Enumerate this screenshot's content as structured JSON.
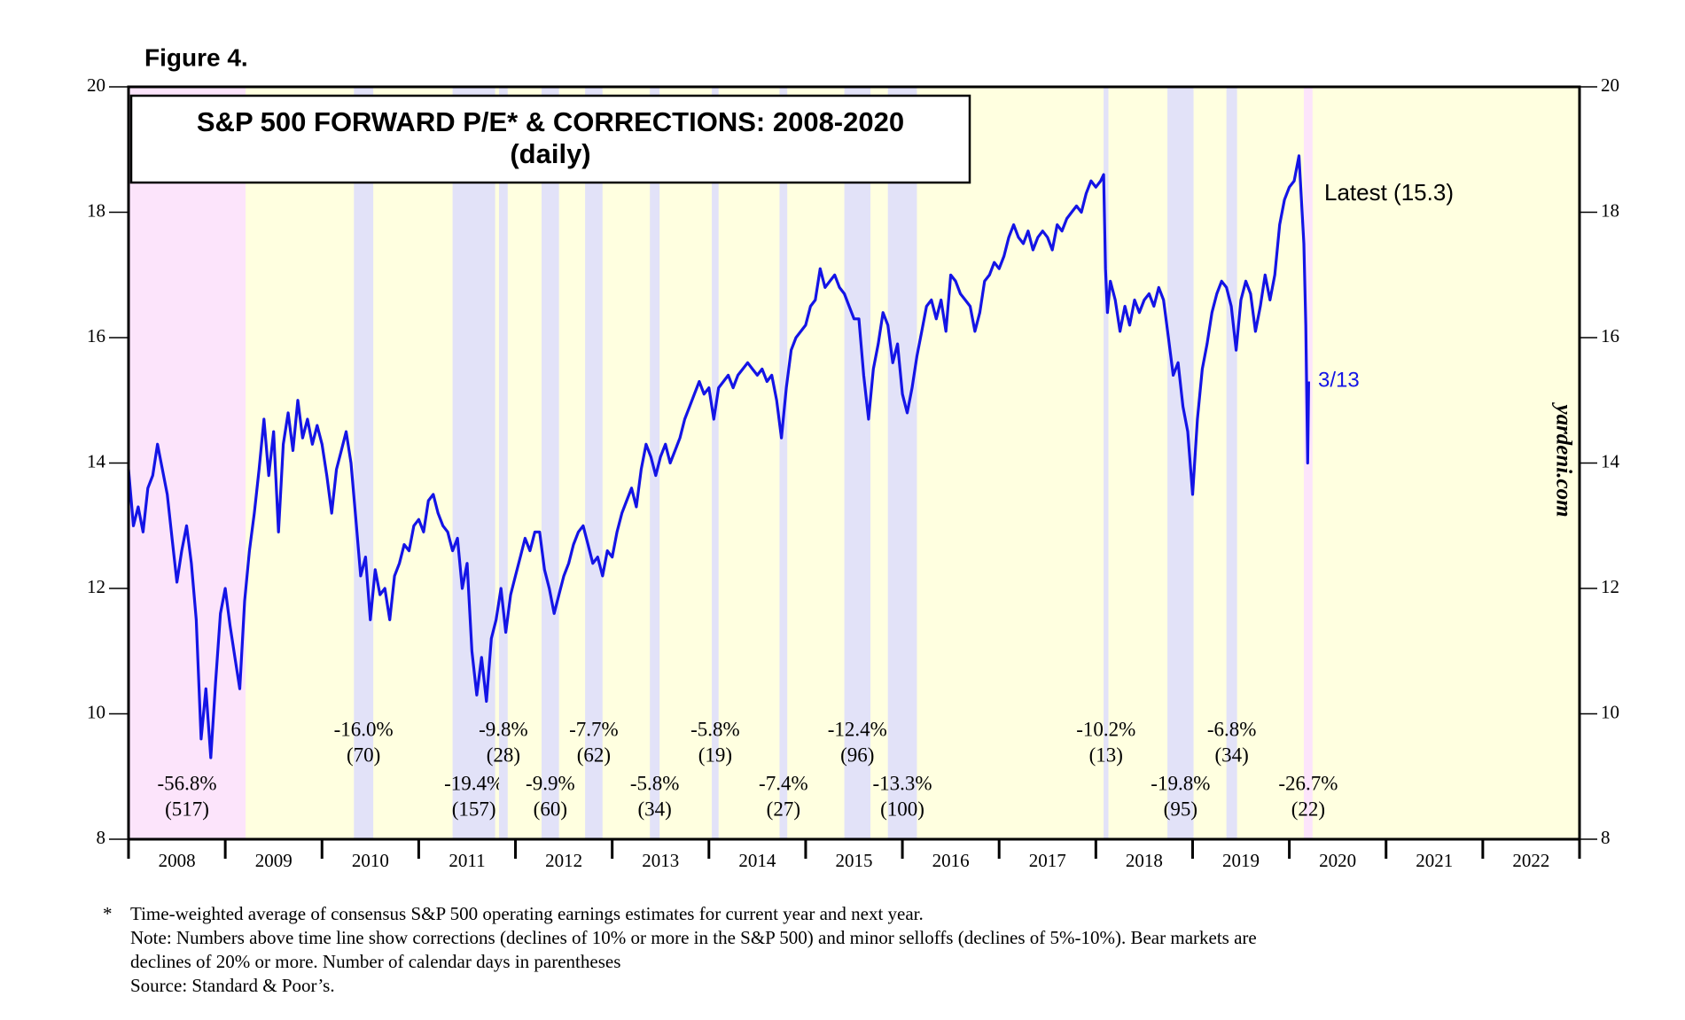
{
  "figure_label": "Figure 4.",
  "chart_data": {
    "type": "line",
    "title": "S&P 500 FORWARD P/E* & CORRECTIONS: 2008-2020",
    "subtitle": "(daily)",
    "xlim": [
      2008,
      2023
    ],
    "x_boundaries": [
      2008,
      2009,
      2010,
      2011,
      2012,
      2013,
      2014,
      2015,
      2016,
      2017,
      2018,
      2019,
      2020,
      2021,
      2022,
      2023
    ],
    "xticks": [
      {
        "value": 2008.5,
        "label": "2008"
      },
      {
        "value": 2009.5,
        "label": "2009"
      },
      {
        "value": 2010.5,
        "label": "2010"
      },
      {
        "value": 2011.5,
        "label": "2011"
      },
      {
        "value": 2012.5,
        "label": "2012"
      },
      {
        "value": 2013.5,
        "label": "2013"
      },
      {
        "value": 2014.5,
        "label": "2014"
      },
      {
        "value": 2015.5,
        "label": "2015"
      },
      {
        "value": 2016.5,
        "label": "2016"
      },
      {
        "value": 2017.5,
        "label": "2017"
      },
      {
        "value": 2018.5,
        "label": "2018"
      },
      {
        "value": 2019.5,
        "label": "2019"
      },
      {
        "value": 2020.5,
        "label": "2020"
      },
      {
        "value": 2021.5,
        "label": "2021"
      },
      {
        "value": 2022.5,
        "label": "2022"
      }
    ],
    "ylim": [
      8,
      20
    ],
    "yticks": [
      8,
      10,
      12,
      14,
      16,
      18,
      20
    ],
    "y2lim": [
      8,
      20
    ],
    "y2ticks": [
      8,
      10,
      12,
      14,
      16,
      18,
      20
    ],
    "color": "#1414e6",
    "background": "#ffffe0",
    "x": [
      2008.0,
      2008.05,
      2008.1,
      2008.15,
      2008.2,
      2008.25,
      2008.3,
      2008.35,
      2008.4,
      2008.45,
      2008.5,
      2008.55,
      2008.6,
      2008.65,
      2008.7,
      2008.75,
      2008.8,
      2008.85,
      2008.9,
      2008.95,
      2009.0,
      2009.05,
      2009.1,
      2009.15,
      2009.2,
      2009.25,
      2009.3,
      2009.35,
      2009.4,
      2009.45,
      2009.5,
      2009.55,
      2009.6,
      2009.65,
      2009.7,
      2009.75,
      2009.8,
      2009.85,
      2009.9,
      2009.95,
      2010.0,
      2010.05,
      2010.1,
      2010.15,
      2010.2,
      2010.25,
      2010.3,
      2010.35,
      2010.4,
      2010.45,
      2010.5,
      2010.55,
      2010.6,
      2010.65,
      2010.7,
      2010.75,
      2010.8,
      2010.85,
      2010.9,
      2010.95,
      2011.0,
      2011.05,
      2011.1,
      2011.15,
      2011.2,
      2011.25,
      2011.3,
      2011.35,
      2011.4,
      2011.45,
      2011.5,
      2011.55,
      2011.6,
      2011.65,
      2011.7,
      2011.75,
      2011.8,
      2011.85,
      2011.9,
      2011.95,
      2012.0,
      2012.05,
      2012.1,
      2012.15,
      2012.2,
      2012.25,
      2012.3,
      2012.35,
      2012.4,
      2012.45,
      2012.5,
      2012.55,
      2012.6,
      2012.65,
      2012.7,
      2012.75,
      2012.8,
      2012.85,
      2012.9,
      2012.95,
      2013.0,
      2013.05,
      2013.1,
      2013.15,
      2013.2,
      2013.25,
      2013.3,
      2013.35,
      2013.4,
      2013.45,
      2013.5,
      2013.55,
      2013.6,
      2013.65,
      2013.7,
      2013.75,
      2013.8,
      2013.85,
      2013.9,
      2013.95,
      2014.0,
      2014.05,
      2014.1,
      2014.15,
      2014.2,
      2014.25,
      2014.3,
      2014.35,
      2014.4,
      2014.45,
      2014.5,
      2014.55,
      2014.6,
      2014.65,
      2014.7,
      2014.75,
      2014.8,
      2014.85,
      2014.9,
      2014.95,
      2015.0,
      2015.05,
      2015.1,
      2015.15,
      2015.2,
      2015.25,
      2015.3,
      2015.35,
      2015.4,
      2015.45,
      2015.5,
      2015.55,
      2015.6,
      2015.65,
      2015.7,
      2015.75,
      2015.8,
      2015.85,
      2015.9,
      2015.95,
      2016.0,
      2016.05,
      2016.1,
      2016.15,
      2016.2,
      2016.25,
      2016.3,
      2016.35,
      2016.4,
      2016.45,
      2016.5,
      2016.55,
      2016.6,
      2016.65,
      2016.7,
      2016.75,
      2016.8,
      2016.85,
      2016.9,
      2016.95,
      2017.0,
      2017.05,
      2017.1,
      2017.15,
      2017.2,
      2017.25,
      2017.3,
      2017.35,
      2017.4,
      2017.45,
      2017.5,
      2017.55,
      2017.6,
      2017.65,
      2017.7,
      2017.75,
      2017.8,
      2017.85,
      2017.9,
      2017.95,
      2018.0,
      2018.05,
      2018.08,
      2018.1,
      2018.12,
      2018.15,
      2018.2,
      2018.25,
      2018.3,
      2018.35,
      2018.4,
      2018.45,
      2018.5,
      2018.55,
      2018.6,
      2018.65,
      2018.7,
      2018.75,
      2018.8,
      2018.85,
      2018.9,
      2018.95,
      2019.0,
      2019.05,
      2019.1,
      2019.15,
      2019.2,
      2019.25,
      2019.3,
      2019.35,
      2019.4,
      2019.45,
      2019.5,
      2019.55,
      2019.6,
      2019.65,
      2019.7,
      2019.75,
      2019.8,
      2019.85,
      2019.9,
      2019.95,
      2020.0,
      2020.05,
      2020.1,
      2020.15,
      2020.17,
      2020.19,
      2020.2
    ],
    "values": [
      13.9,
      13.0,
      13.3,
      12.9,
      13.6,
      13.8,
      14.3,
      13.9,
      13.5,
      12.8,
      12.1,
      12.6,
      13.0,
      12.4,
      11.5,
      9.6,
      10.4,
      9.3,
      10.5,
      11.6,
      12.0,
      11.4,
      10.9,
      10.4,
      11.8,
      12.6,
      13.2,
      13.9,
      14.7,
      13.8,
      14.5,
      12.9,
      14.3,
      14.8,
      14.2,
      15.0,
      14.4,
      14.7,
      14.3,
      14.6,
      14.3,
      13.8,
      13.2,
      13.9,
      14.2,
      14.5,
      14.0,
      13.1,
      12.2,
      12.5,
      11.5,
      12.3,
      11.9,
      12.0,
      11.5,
      12.2,
      12.4,
      12.7,
      12.6,
      13.0,
      13.1,
      12.9,
      13.4,
      13.5,
      13.2,
      13.0,
      12.9,
      12.6,
      12.8,
      12.0,
      12.4,
      11.0,
      10.3,
      10.9,
      10.2,
      11.2,
      11.5,
      12.0,
      11.3,
      11.9,
      12.2,
      12.5,
      12.8,
      12.6,
      12.9,
      12.9,
      12.3,
      12.0,
      11.6,
      11.9,
      12.2,
      12.4,
      12.7,
      12.9,
      13.0,
      12.7,
      12.4,
      12.5,
      12.2,
      12.6,
      12.5,
      12.9,
      13.2,
      13.4,
      13.6,
      13.3,
      13.9,
      14.3,
      14.1,
      13.8,
      14.1,
      14.3,
      14.0,
      14.2,
      14.4,
      14.7,
      14.9,
      15.1,
      15.3,
      15.1,
      15.2,
      14.7,
      15.2,
      15.3,
      15.4,
      15.2,
      15.4,
      15.5,
      15.6,
      15.5,
      15.4,
      15.5,
      15.3,
      15.4,
      15.0,
      14.4,
      15.2,
      15.8,
      16.0,
      16.1,
      16.2,
      16.5,
      16.6,
      17.1,
      16.8,
      16.9,
      17.0,
      16.8,
      16.7,
      16.5,
      16.3,
      16.3,
      15.4,
      14.7,
      15.5,
      15.9,
      16.4,
      16.2,
      15.6,
      15.9,
      15.1,
      14.8,
      15.2,
      15.7,
      16.1,
      16.5,
      16.6,
      16.3,
      16.6,
      16.1,
      17.0,
      16.9,
      16.7,
      16.6,
      16.5,
      16.1,
      16.4,
      16.9,
      17.0,
      17.2,
      17.1,
      17.3,
      17.6,
      17.8,
      17.6,
      17.5,
      17.7,
      17.4,
      17.6,
      17.7,
      17.6,
      17.4,
      17.8,
      17.7,
      17.9,
      18.0,
      18.1,
      18.0,
      18.3,
      18.5,
      18.4,
      18.5,
      18.6,
      17.1,
      16.4,
      16.9,
      16.6,
      16.1,
      16.5,
      16.2,
      16.6,
      16.4,
      16.6,
      16.7,
      16.5,
      16.8,
      16.6,
      16.0,
      15.4,
      15.6,
      14.9,
      14.5,
      13.5,
      14.7,
      15.5,
      15.9,
      16.4,
      16.7,
      16.9,
      16.8,
      16.5,
      15.8,
      16.6,
      16.9,
      16.7,
      16.1,
      16.5,
      17.0,
      16.6,
      17.0,
      17.8,
      18.2,
      18.4,
      18.5,
      18.9,
      17.5,
      16.2,
      14.0,
      15.3
    ],
    "periods": [
      {
        "start": 2008.0,
        "end": 2009.21,
        "label": "-56.8%",
        "days": "(517)",
        "color": "#fce4fb"
      },
      {
        "start": 2010.33,
        "end": 2010.53,
        "label": "-16.0%",
        "days": "(70)",
        "color": "#e2e2f8"
      },
      {
        "start": 2011.35,
        "end": 2011.79,
        "label": "-19.4%",
        "days": "(157)",
        "color": "#e2e2f8"
      },
      {
        "start": 2011.83,
        "end": 2011.92,
        "label": "-9.8%",
        "days": "(28)",
        "color": "#e2e2f8"
      },
      {
        "start": 2012.27,
        "end": 2012.45,
        "label": "-9.9%",
        "days": "(60)",
        "color": "#e2e2f8"
      },
      {
        "start": 2012.72,
        "end": 2012.9,
        "label": "-7.7%",
        "days": "(62)",
        "color": "#e2e2f8"
      },
      {
        "start": 2013.39,
        "end": 2013.49,
        "label": "-5.8%",
        "days": "(34)",
        "color": "#e2e2f8"
      },
      {
        "start": 2014.03,
        "end": 2014.1,
        "label": "-5.8%",
        "days": "(19)",
        "color": "#e2e2f8"
      },
      {
        "start": 2014.73,
        "end": 2014.81,
        "label": "-7.4%",
        "days": "(27)",
        "color": "#e2e2f8"
      },
      {
        "start": 2015.4,
        "end": 2015.67,
        "label": "-12.4%",
        "days": "(96)",
        "color": "#e2e2f8"
      },
      {
        "start": 2015.85,
        "end": 2016.15,
        "label": "-13.3%",
        "days": "(100)",
        "color": "#e2e2f8"
      },
      {
        "start": 2018.08,
        "end": 2018.13,
        "label": "-10.2%",
        "days": "(13)",
        "color": "#e2e2f8"
      },
      {
        "start": 2018.74,
        "end": 2019.01,
        "label": "-19.8%",
        "days": "(95)",
        "color": "#e2e2f8"
      },
      {
        "start": 2019.35,
        "end": 2019.46,
        "label": "-6.8%",
        "days": "(34)",
        "color": "#e2e2f8"
      },
      {
        "start": 2020.15,
        "end": 2020.24,
        "label": "-26.7%",
        "days": "(22)",
        "color": "#fce4fb"
      }
    ],
    "annotations": {
      "latest": "Latest (15.3)",
      "last_date": "3/13",
      "source_mark": "yardeni.com"
    }
  },
  "footnotes": {
    "marker": "*",
    "lines": [
      "Time-weighted average of consensus S&P 500 operating earnings estimates for current year and next year.",
      "Note: Numbers above time line show corrections (declines of 10% or more in the S&P 500) and minor selloffs (declines of 5%-10%). Bear markets are",
      "declines of 20% or more. Number of calendar days in parentheses",
      "Source: Standard & Poor’s."
    ]
  }
}
